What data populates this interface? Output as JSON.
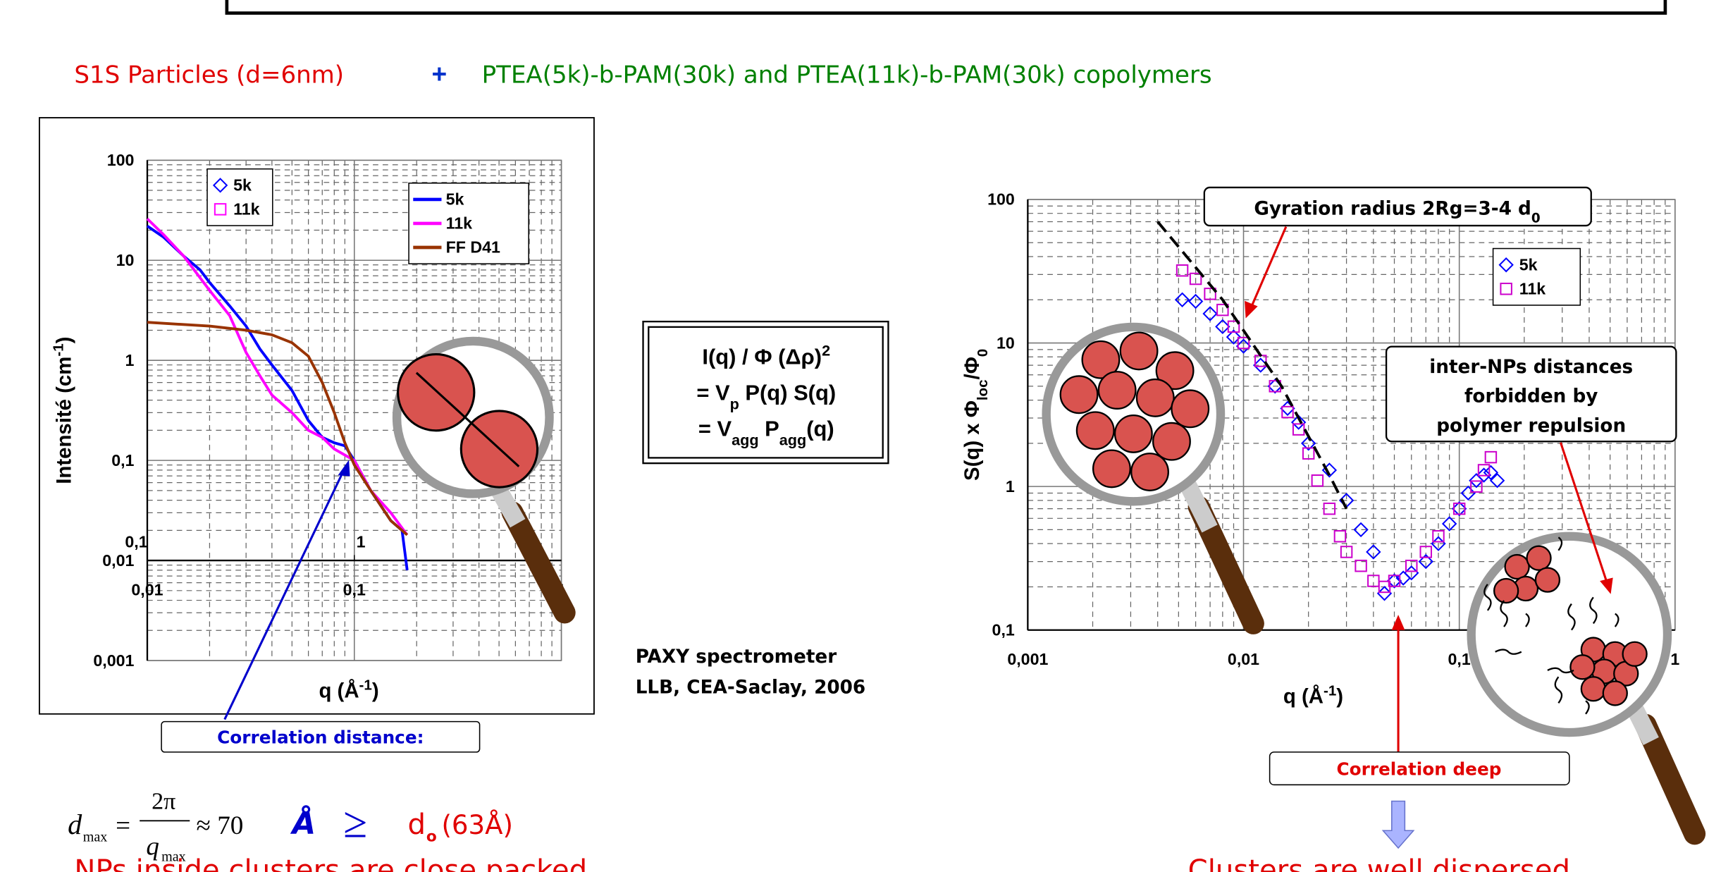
{
  "header": {
    "subtitle_left": "S1S Particles (d=6nm)",
    "subtitle_plus": "+",
    "subtitle_right": "PTEA(5k)-b-PAM(30k) and PTEA(11k)-b-PAM(30k) copolymers"
  },
  "chart_data": [
    {
      "type": "line",
      "log_x": true,
      "log_y": true,
      "xlabel": [
        {
          "text": "q (Å"
        },
        {
          "text": "-1",
          "style": "sup"
        },
        {
          "text": ")"
        }
      ],
      "ylabel": [
        {
          "text": "Intensité (cm"
        },
        {
          "text": "-1",
          "style": "sup"
        },
        {
          "text": ")"
        }
      ],
      "xlim": [
        0.01,
        1
      ],
      "ylim": [
        0.001,
        100
      ],
      "xticks": [
        {
          "value": 0.01,
          "label": "0,01"
        },
        {
          "value": 0.1,
          "label": "0,1"
        },
        1
      ],
      "yticks": [
        {
          "value": 0.001,
          "label": "0,001"
        },
        {
          "value": 0.01,
          "label": "0,01"
        },
        {
          "value": 0.1,
          "label": "0,1"
        },
        1,
        10,
        100
      ],
      "x2lim": [
        0.1,
        10
      ],
      "x2ticks": [
        {
          "value": 0.1,
          "label": "0,1"
        },
        1
      ],
      "x_cross": 0.01,
      "grid": true,
      "minor_grid": true,
      "legend_position": "upper-right",
      "series": [
        {
          "name": "5k",
          "color": "#0000ff",
          "x": [
            0.01,
            0.012,
            0.015,
            0.018,
            0.02,
            0.025,
            0.03,
            0.035,
            0.04,
            0.05,
            0.06,
            0.07,
            0.08,
            0.09,
            0.1,
            0.12,
            0.15,
            0.17,
            0.18
          ],
          "values": [
            22,
            17,
            11,
            8,
            6,
            3.5,
            2.2,
            1.3,
            0.9,
            0.5,
            0.25,
            0.17,
            0.15,
            0.14,
            0.1,
            0.05,
            0.025,
            0.02,
            0.008
          ]
        },
        {
          "name": "11k",
          "color": "#ff00ff",
          "x": [
            0.01,
            0.012,
            0.015,
            0.02,
            0.025,
            0.03,
            0.035,
            0.04,
            0.05,
            0.06,
            0.07,
            0.08,
            0.1,
            0.12,
            0.15,
            0.18
          ],
          "values": [
            26,
            18,
            11,
            5,
            2.8,
            1.2,
            0.7,
            0.45,
            0.3,
            0.2,
            0.17,
            0.13,
            0.1,
            0.05,
            0.03,
            0.018
          ]
        },
        {
          "name": "FF D41",
          "color": "#993300",
          "x": [
            0.01,
            0.02,
            0.03,
            0.04,
            0.05,
            0.06,
            0.07,
            0.08,
            0.09,
            0.1,
            0.12,
            0.15,
            0.18
          ],
          "values": [
            2.4,
            2.2,
            2.0,
            1.8,
            1.5,
            1.1,
            0.6,
            0.3,
            0.15,
            0.09,
            0.05,
            0.025,
            0.018
          ]
        }
      ],
      "marker_legend_position": "upper-left",
      "marker_legend": [
        {
          "name": "5k",
          "marker": "diamond",
          "color": "#0000ff"
        },
        {
          "name": "11k",
          "marker": "square",
          "color": "#ff00ff"
        }
      ]
    },
    {
      "type": "scatter",
      "log_x": true,
      "log_y": true,
      "xlabel": [
        {
          "text": "q (Å"
        },
        {
          "text": "-1",
          "style": "sup"
        },
        {
          "text": ")"
        }
      ],
      "ylabel": [
        {
          "text": "S(q) x Φ"
        },
        {
          "text": "loc",
          "style": "sub"
        },
        {
          "text": "/Φ"
        },
        {
          "text": "0",
          "style": "sub"
        }
      ],
      "xlim": [
        0.001,
        1
      ],
      "ylim": [
        0.1,
        100
      ],
      "xticks": [
        {
          "value": 0.001,
          "label": "0,001"
        },
        {
          "value": 0.01,
          "label": "0,01"
        },
        {
          "value": 0.1,
          "label": "0,1"
        },
        1
      ],
      "yticks": [
        {
          "value": 0.1,
          "label": "0,1"
        },
        1,
        10,
        100
      ],
      "x_cross": 0.1,
      "grid": true,
      "minor_grid": true,
      "legend_position": "upper-right",
      "series": [
        {
          "name": "5k",
          "color": "#0000ff",
          "marker": "diamond",
          "x": [
            0.0052,
            0.006,
            0.007,
            0.008,
            0.009,
            0.01,
            0.012,
            0.014,
            0.016,
            0.018,
            0.02,
            0.025,
            0.03,
            0.035,
            0.04,
            0.045,
            0.05,
            0.055,
            0.06,
            0.07,
            0.08,
            0.09,
            0.1,
            0.11,
            0.12,
            0.13,
            0.14,
            0.15
          ],
          "values": [
            20,
            19.5,
            16,
            13,
            11,
            9.5,
            7,
            5,
            3.5,
            2.8,
            2,
            1.3,
            0.8,
            0.5,
            0.35,
            0.18,
            0.22,
            0.23,
            0.25,
            0.3,
            0.4,
            0.55,
            0.7,
            0.9,
            1.1,
            1.2,
            1.25,
            1.1
          ]
        },
        {
          "name": "11k",
          "color": "#cc00cc",
          "marker": "square",
          "x": [
            0.0052,
            0.006,
            0.007,
            0.008,
            0.009,
            0.01,
            0.012,
            0.014,
            0.016,
            0.018,
            0.02,
            0.022,
            0.025,
            0.028,
            0.03,
            0.035,
            0.04,
            0.045,
            0.05,
            0.06,
            0.07,
            0.08,
            0.1,
            0.12,
            0.13,
            0.14
          ],
          "values": [
            32,
            28,
            22,
            17,
            13,
            10,
            7.5,
            5,
            3.3,
            2.5,
            1.7,
            1.1,
            0.7,
            0.45,
            0.35,
            0.28,
            0.22,
            0.2,
            0.22,
            0.28,
            0.35,
            0.45,
            0.7,
            1.0,
            1.3,
            1.6
          ]
        }
      ],
      "fit": {
        "color": "#000000",
        "dashed": true,
        "x": [
          0.004,
          0.008,
          0.015,
          0.025,
          0.03
        ],
        "values": [
          70,
          20,
          5,
          1.2,
          0.7
        ]
      }
    }
  ],
  "formula": [
    [
      {
        "text": "I(q) / Φ (Δρ)"
      },
      {
        "text": "2",
        "style": "sup"
      }
    ],
    [
      {
        "text": "= V"
      },
      {
        "text": "p",
        "style": "sub"
      },
      {
        "text": " P(q) S(q)"
      }
    ],
    [
      {
        "text": "= V"
      },
      {
        "text": "agg",
        "style": "sub"
      },
      {
        "text": " P"
      },
      {
        "text": "agg",
        "style": "sub"
      },
      {
        "text": "(q)"
      }
    ]
  ],
  "instrument": [
    "PAXY spectrometer",
    "LLB, CEA-Saclay, 2006"
  ],
  "annotations": {
    "correlation_distance": "Correlation distance:",
    "gyration": [
      {
        "text": "Gyration radius 2Rg=3-4 d"
      },
      {
        "text": "0",
        "style": "sub"
      }
    ],
    "inter_nps": [
      "inter-NPs distances",
      "forbidden by",
      "polymer repulsion"
    ],
    "correlation_deep": "Correlation deep"
  },
  "equation": {
    "lhs": "d",
    "lhs_sub": "max",
    "equals": "=",
    "numerator": "2π",
    "denominator": "q",
    "denominator_sub": "max",
    "approx": "≈ 70",
    "unit": "Å",
    "relation": "≥",
    "d0": "d",
    "d0_sub": "o",
    "d0_value": "(63Å)"
  },
  "conclusions": [
    "NPs inside clusters are close packed",
    "Clusters are well dispersed"
  ]
}
